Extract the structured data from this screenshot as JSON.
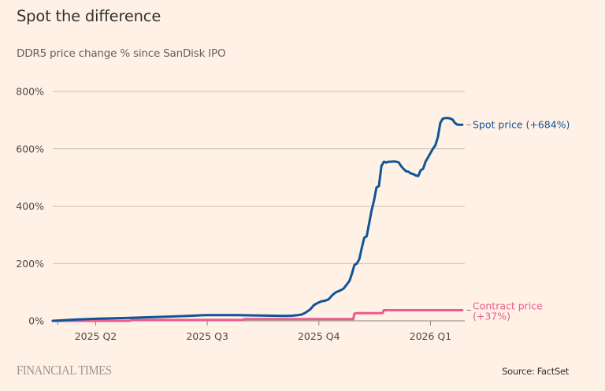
{
  "header": {
    "title": "Spot the difference",
    "subtitle": "DDR5 price change % since SanDisk IPO"
  },
  "footer": {
    "logo": "FINANCIAL TIMES",
    "source": "Source: FactSet"
  },
  "colors": {
    "background": "#fff1e5",
    "spot": "#0f5499",
    "contract": "#e95d8c",
    "grid": "#c9bfb6",
    "axis": "#8c857f"
  },
  "chart_data": {
    "type": "line",
    "title": "Spot the difference",
    "subtitle": "DDR5 price change % since SanDisk IPO",
    "xlabel": "",
    "ylabel": "",
    "x_unit": "days since SanDisk IPO (approx. late Feb 2025)",
    "xlim": [
      0,
      336
    ],
    "ylim": [
      0,
      800
    ],
    "grid": true,
    "y_ticks": [
      {
        "value": 0,
        "label": "0%"
      },
      {
        "value": 200,
        "label": "200%"
      },
      {
        "value": 400,
        "label": "400%"
      },
      {
        "value": 600,
        "label": "600%"
      },
      {
        "value": 800,
        "label": "800%"
      }
    ],
    "x_ticks": [
      {
        "value": 35,
        "label": "2025 Q2"
      },
      {
        "value": 126,
        "label": "2025 Q3"
      },
      {
        "value": 217,
        "label": "2025 Q4"
      },
      {
        "value": 308,
        "label": "2026 Q1"
      }
    ],
    "minor_x_ticks": [
      4
    ],
    "series": [
      {
        "name": "Spot price",
        "end_label": "Spot price (+684%)",
        "final_value": 684,
        "x": [
          0,
          20,
          40,
          60,
          75,
          90,
          110,
          125,
          150,
          165,
          180,
          190,
          195,
          200,
          203,
          206,
          210,
          213,
          216,
          219,
          222,
          225,
          228,
          231,
          234,
          237,
          240,
          242,
          244,
          246,
          248,
          250,
          252,
          254,
          256,
          258,
          260,
          262,
          264,
          266,
          268,
          270,
          272,
          274,
          276,
          278,
          280,
          282,
          284,
          286,
          288,
          290,
          292,
          294,
          296,
          298,
          300,
          302,
          304,
          306,
          308,
          310,
          312,
          314,
          316,
          318,
          320,
          322,
          324,
          326,
          328,
          330,
          332,
          334
        ],
        "values": [
          0,
          5,
          8,
          10,
          12,
          14,
          17,
          20,
          20,
          19,
          18,
          17,
          18,
          20,
          22,
          28,
          40,
          55,
          62,
          68,
          70,
          75,
          90,
          100,
          105,
          112,
          128,
          140,
          165,
          195,
          200,
          215,
          255,
          290,
          295,
          340,
          385,
          420,
          465,
          470,
          540,
          555,
          552,
          555,
          555,
          556,
          555,
          553,
          540,
          530,
          522,
          520,
          514,
          512,
          507,
          505,
          525,
          530,
          555,
          570,
          585,
          600,
          612,
          640,
          690,
          705,
          707,
          707,
          706,
          702,
          690,
          684,
          684,
          684
        ]
      },
      {
        "name": "Contract price",
        "end_label": "Contract price (+37%)",
        "final_value": 37,
        "x": [
          0,
          63,
          64,
          155,
          156,
          245,
          246,
          248,
          269,
          270,
          334
        ],
        "values": [
          0,
          0,
          3,
          3,
          6,
          6,
          25,
          27,
          27,
          37,
          37
        ]
      }
    ]
  }
}
